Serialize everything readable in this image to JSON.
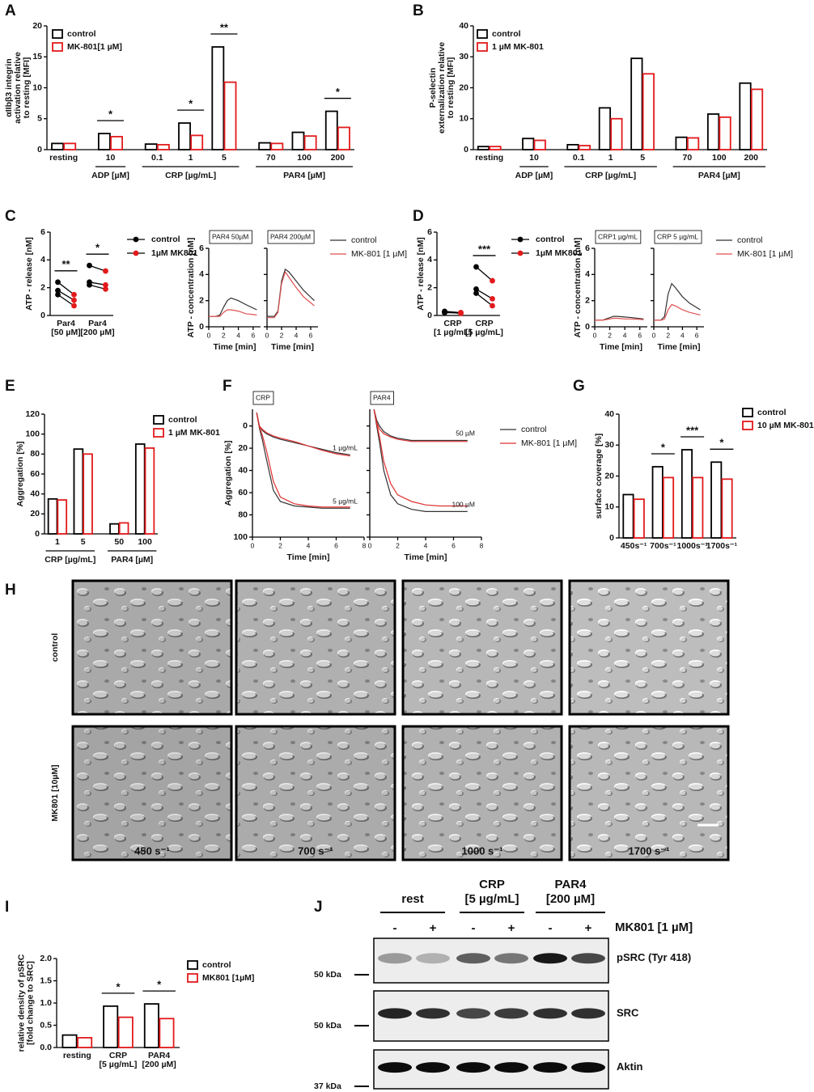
{
  "chart_data": [
    {
      "panel": "A",
      "type": "bar",
      "ylabel": [
        "αIIbβ3 integrin",
        "activation relative",
        "to resting [MFI]"
      ],
      "categories": [
        "resting",
        "10",
        "0.1",
        "1",
        "5",
        "70",
        "100",
        "200"
      ],
      "category_groups": [
        null,
        "ADP [µM]",
        "CRP [µg/mL]",
        "CRP [µg/mL]",
        "CRP [µg/mL]",
        "PAR4 [µM]",
        "PAR4 [µM]",
        "PAR4 [µM]"
      ],
      "series": [
        {
          "name": "control",
          "color": "#000000",
          "values": [
            1.0,
            2.6,
            0.9,
            4.3,
            16.6,
            1.1,
            2.8,
            6.2
          ]
        },
        {
          "name": "MK-801[1 µM]",
          "color": "#e31a1c",
          "values": [
            1.0,
            2.1,
            0.8,
            2.3,
            10.9,
            1.0,
            2.2,
            3.6
          ]
        }
      ],
      "significance": [
        null,
        "*",
        null,
        "*",
        "**",
        null,
        null,
        "*"
      ],
      "ylim": [
        0,
        20
      ],
      "yticks": [
        0,
        5,
        10,
        15,
        20
      ]
    },
    {
      "panel": "B",
      "type": "bar",
      "ylabel": [
        "P-selectin",
        "externalization relative",
        "to resting [MFI]"
      ],
      "categories": [
        "resting",
        "10",
        "0.1",
        "1",
        "5",
        "70",
        "100",
        "200"
      ],
      "category_groups": [
        null,
        "ADP [µM]",
        "CRP [µg/mL]",
        "CRP [µg/mL]",
        "CRP [µg/mL]",
        "PAR4 [µM]",
        "PAR4 [µM]",
        "PAR4 [µM]"
      ],
      "series": [
        {
          "name": "control",
          "color": "#000000",
          "values": [
            1.0,
            3.6,
            1.6,
            13.5,
            29.5,
            4.0,
            11.5,
            21.5
          ]
        },
        {
          "name": "1 µM MK-801",
          "color": "#e31a1c",
          "values": [
            1.0,
            3.0,
            1.3,
            10.0,
            24.5,
            3.8,
            10.5,
            19.5
          ]
        }
      ],
      "ylim": [
        0,
        40
      ],
      "yticks": [
        0,
        10,
        20,
        30,
        40
      ]
    },
    {
      "panel": "C",
      "type": "paired",
      "ylabel": "ATP - release [nM]",
      "categories": [
        [
          "Par4",
          "[50 µM]"
        ],
        [
          "Par4",
          "[200 µM]"
        ]
      ],
      "series": [
        {
          "name": "control",
          "color": "#000000",
          "values": [
            [
              2.4,
              1.8,
              1.5
            ],
            [
              3.6,
              2.4,
              2.2
            ]
          ]
        },
        {
          "name": "1µM MK801",
          "color": "#e31a1c",
          "values": [
            [
              1.5,
              1.1,
              0.7
            ],
            [
              3.2,
              2.2,
              1.9
            ]
          ]
        }
      ],
      "significance": [
        "**",
        "*"
      ],
      "ylim": [
        0,
        6
      ],
      "yticks": [
        0,
        2,
        4,
        6
      ]
    },
    {
      "type": "line",
      "ylabel": "ATP - concentration [nM]",
      "xlabel": "Time [min]",
      "x": [
        0,
        1,
        1.5,
        2,
        2.5,
        3,
        4,
        5,
        6.5
      ],
      "xlim": [
        0,
        7
      ],
      "xticks": [
        0,
        2,
        4,
        6
      ],
      "ylim": [
        0,
        6
      ],
      "yticks": [
        0,
        2,
        4,
        6
      ],
      "legend": [
        {
          "name": "control",
          "color": "#333333"
        },
        {
          "name": "MK-801 [1 µM]",
          "color": "#e05050"
        }
      ],
      "panels": [
        {
          "title": "PAR4 50µM",
          "series": [
            {
              "values": [
                0.8,
                0.8,
                0.9,
                1.5,
                2.0,
                2.2,
                2.0,
                1.7,
                1.3
              ]
            },
            {
              "values": [
                0.8,
                0.8,
                0.8,
                1.1,
                1.3,
                1.3,
                1.2,
                1.0,
                0.9
              ]
            }
          ]
        },
        {
          "title": "PAR4 200µM",
          "series": [
            {
              "values": [
                0.8,
                0.8,
                1.2,
                3.5,
                4.4,
                4.2,
                3.5,
                2.8,
                2.0
              ]
            },
            {
              "values": [
                0.7,
                0.7,
                1.1,
                3.3,
                4.2,
                3.8,
                3.0,
                2.3,
                1.6
              ]
            }
          ]
        }
      ]
    },
    {
      "panel": "D",
      "type": "paired",
      "ylabel": "ATP - release [nM]",
      "categories": [
        [
          "CRP",
          "[1 µg/mL]"
        ],
        [
          "CRP",
          "[5 µg/mL]"
        ]
      ],
      "series": [
        {
          "name": "control",
          "color": "#000000",
          "values": [
            [
              0.3,
              0.25,
              0.2
            ],
            [
              3.5,
              1.9,
              1.6
            ]
          ]
        },
        {
          "name": "1µM MK801",
          "color": "#e31a1c",
          "values": [
            [
              0.2,
              0.15,
              0.2
            ],
            [
              2.5,
              1.2,
              0.7
            ]
          ]
        }
      ],
      "significance": [
        null,
        "***"
      ],
      "ylim": [
        0,
        6
      ],
      "yticks": [
        0,
        2,
        4,
        6
      ]
    },
    {
      "type": "line",
      "ylabel": "ATP - concentration [nM]",
      "xlabel": "Time [min]",
      "x": [
        0,
        1,
        1.5,
        2,
        2.5,
        3,
        4,
        5,
        6.5
      ],
      "xlim": [
        0,
        7
      ],
      "xticks": [
        0,
        2,
        4,
        6
      ],
      "ylim": [
        0,
        6
      ],
      "yticks": [
        0,
        2,
        4,
        6
      ],
      "legend": [
        {
          "name": "control",
          "color": "#333333"
        },
        {
          "name": "MK-801 [1 µM]",
          "color": "#e05050"
        }
      ],
      "panels": [
        {
          "title": "CRP1 µg/mL",
          "series": [
            {
              "values": [
                0.5,
                0.5,
                0.6,
                0.7,
                0.8,
                0.8,
                0.75,
                0.7,
                0.6
              ]
            },
            {
              "values": [
                0.5,
                0.5,
                0.55,
                0.6,
                0.65,
                0.65,
                0.6,
                0.6,
                0.55
              ]
            }
          ]
        },
        {
          "title": "CRP 5 µg/mL",
          "series": [
            {
              "values": [
                0.5,
                0.5,
                0.8,
                2.5,
                3.3,
                3.0,
                2.3,
                1.8,
                1.3
              ]
            },
            {
              "values": [
                0.5,
                0.5,
                0.6,
                1.3,
                1.7,
                1.6,
                1.3,
                1.1,
                0.9
              ]
            }
          ]
        }
      ]
    },
    {
      "panel": "E",
      "type": "bar",
      "ylabel": "Aggregation [%]",
      "categories": [
        "1",
        "5",
        "50",
        "100"
      ],
      "category_groups": [
        "CRP [µg/mL]",
        "CRP [µg/mL]",
        "PAR4 [µM]",
        "PAR4 [µM]"
      ],
      "series": [
        {
          "name": "control",
          "color": "#000000",
          "values": [
            35,
            85,
            10,
            90
          ]
        },
        {
          "name": "1 µM MK-801",
          "color": "#e31a1c",
          "values": [
            34,
            80,
            11,
            86
          ]
        }
      ],
      "ylim": [
        0,
        120
      ],
      "yticks": [
        0,
        20,
        40,
        60,
        80,
        100,
        120
      ]
    },
    {
      "panel": "F",
      "type": "line",
      "ylabel": "Aggregation [%]",
      "xlabel": "Time [min]",
      "x": [
        0.3,
        0.5,
        0.7,
        1,
        1.5,
        2,
        3,
        4,
        5,
        6,
        7
      ],
      "xlim": [
        0,
        8
      ],
      "xticks": [
        0,
        2,
        4,
        6,
        8
      ],
      "ylim": [
        100,
        -15
      ],
      "yticks": [
        0,
        20,
        40,
        60,
        80,
        100
      ],
      "legend": [
        {
          "name": "control",
          "color": "#333333"
        },
        {
          "name": "MK-801 [1 µM]",
          "color": "#e03030"
        }
      ],
      "panels": [
        {
          "title": "CRP",
          "labels": [
            "1 µg/mL",
            "5 µg/mL"
          ],
          "series": [
            {
              "values": [
                -12,
                0,
                4,
                7,
                10,
                12,
                15,
                18,
                21,
                24,
                26
              ]
            },
            {
              "values": [
                -12,
                0,
                3,
                6,
                9,
                11,
                14,
                18,
                22,
                25,
                27
              ]
            },
            {
              "values": [
                -12,
                2,
                12,
                30,
                58,
                68,
                72,
                73,
                74,
                74,
                74
              ]
            },
            {
              "values": [
                -12,
                1,
                8,
                22,
                50,
                64,
                70,
                72,
                73,
                73,
                73
              ]
            }
          ]
        },
        {
          "title": "PAR4",
          "labels": [
            "50 µM",
            "100 µM"
          ],
          "series": [
            {
              "values": [
                -15,
                -5,
                0,
                5,
                9,
                11,
                13,
                13,
                13,
                13,
                13
              ]
            },
            {
              "values": [
                -15,
                -3,
                3,
                7,
                10,
                12,
                14,
                14,
                14,
                14,
                14
              ]
            },
            {
              "values": [
                -15,
                0,
                15,
                40,
                62,
                70,
                75,
                77,
                77,
                77,
                77
              ]
            },
            {
              "values": [
                -15,
                -2,
                10,
                32,
                52,
                62,
                68,
                71,
                72,
                72,
                72
              ]
            }
          ]
        }
      ]
    },
    {
      "panel": "G",
      "type": "bar",
      "ylabel": "surface coverage [%]",
      "categories": [
        "450s⁻¹",
        "700s⁻¹",
        "1000s⁻¹",
        "1700s⁻¹"
      ],
      "series": [
        {
          "name": "control",
          "color": "#000000",
          "values": [
            14,
            23,
            28.5,
            24.5
          ]
        },
        {
          "name": "10 µM MK-801",
          "color": "#e31a1c",
          "values": [
            12.5,
            19.5,
            19.5,
            19
          ]
        }
      ],
      "significance": [
        null,
        "*",
        "***",
        "*"
      ],
      "ylim": [
        0,
        40
      ],
      "yticks": [
        0,
        10,
        20,
        30,
        40
      ]
    },
    {
      "panel": "I",
      "type": "bar",
      "ylabel": [
        "relative density of pSRC",
        "[fold change to SRC]"
      ],
      "categories": [
        "resting",
        [
          "CRP",
          "[5 µg/mL]"
        ],
        [
          "PAR4",
          "[200 µM]"
        ]
      ],
      "series": [
        {
          "name": "control",
          "color": "#000000",
          "values": [
            0.28,
            0.93,
            0.98
          ]
        },
        {
          "name": "MK801 [1µM]",
          "color": "#e31a1c",
          "values": [
            0.22,
            0.68,
            0.65
          ]
        }
      ],
      "significance": [
        null,
        "*",
        "*"
      ],
      "ylim": [
        0,
        2
      ],
      "yticks": [
        {
          "value": 0,
          "label": "0.0"
        },
        {
          "value": 0.5,
          "label": "0.5"
        },
        {
          "value": 1,
          "label": "1.0"
        },
        {
          "value": 1.5,
          "label": "1.5"
        },
        {
          "value": 2,
          "label": "2.0"
        }
      ]
    }
  ],
  "micrographs": {
    "panel": "H",
    "rows": [
      "control",
      "MK801 [10µM]"
    ],
    "columns": [
      "450 s⁻¹",
      "700 s⁻¹",
      "1000 s⁻¹",
      "1700 s⁻¹"
    ]
  },
  "blot": {
    "panel": "J",
    "groups": [
      [
        "rest"
      ],
      [
        "CRP",
        "[5 µg/mL]"
      ],
      [
        "PAR4",
        "[200 µM]"
      ]
    ],
    "lanes": [
      "-",
      "+",
      "-",
      "+",
      "-",
      "+"
    ],
    "treatment": "MK801 [1 µM]",
    "rows": [
      "pSRC (Tyr 418)",
      "SRC",
      "Aktin"
    ],
    "markers": [
      "50 kDa",
      "50 kDa",
      "37 kDa"
    ]
  }
}
